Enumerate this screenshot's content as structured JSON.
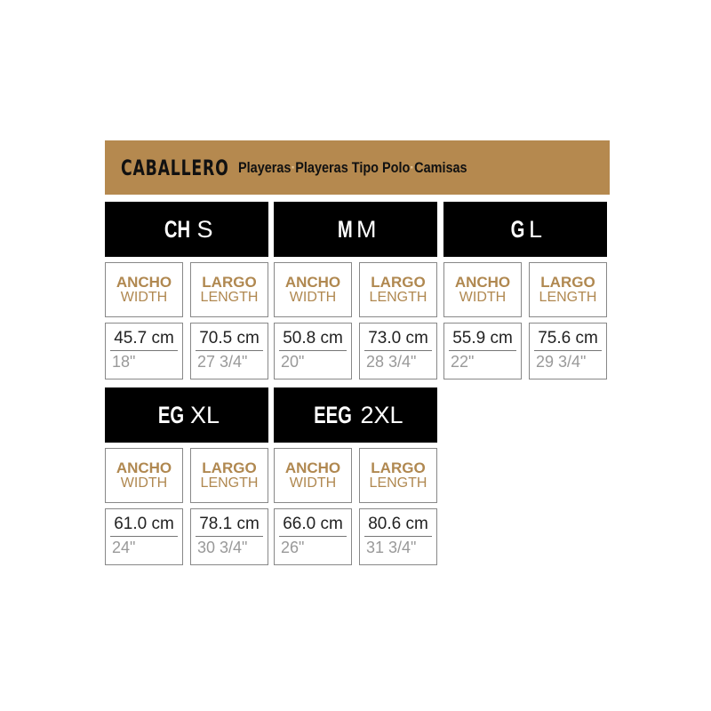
{
  "title": {
    "main": "CABALLERO",
    "items": [
      "Playeras",
      "Playeras Tipo Polo",
      "Camisas"
    ],
    "separator": "·"
  },
  "labels": {
    "width_es": "ANCHO",
    "width_en": "WIDTH",
    "length_es": "LARGO",
    "length_en": "LENGTH"
  },
  "colors": {
    "title_bar": "#b5894f",
    "label_text": "#b08850",
    "header_bg": "#000000"
  },
  "sizes": [
    {
      "mx": "CH",
      "us": "S",
      "width_cm": "45.7 cm",
      "width_in": "18\"",
      "length_cm": "70.5 cm",
      "length_in": "27 3/4\""
    },
    {
      "mx": "M",
      "us": "M",
      "width_cm": "50.8 cm",
      "width_in": "20\"",
      "length_cm": "73.0 cm",
      "length_in": "28 3/4\""
    },
    {
      "mx": "G",
      "us": "L",
      "width_cm": "55.9 cm",
      "width_in": "22\"",
      "length_cm": "75.6 cm",
      "length_in": "29 3/4\""
    },
    {
      "mx": "EG",
      "us": "XL",
      "width_cm": "61.0 cm",
      "width_in": "24\"",
      "length_cm": "78.1 cm",
      "length_in": "30 3/4\""
    },
    {
      "mx": "EEG",
      "us": "2XL",
      "width_cm": "66.0 cm",
      "width_in": "26\"",
      "length_cm": "80.6 cm",
      "length_in": "31 3/4\""
    }
  ]
}
